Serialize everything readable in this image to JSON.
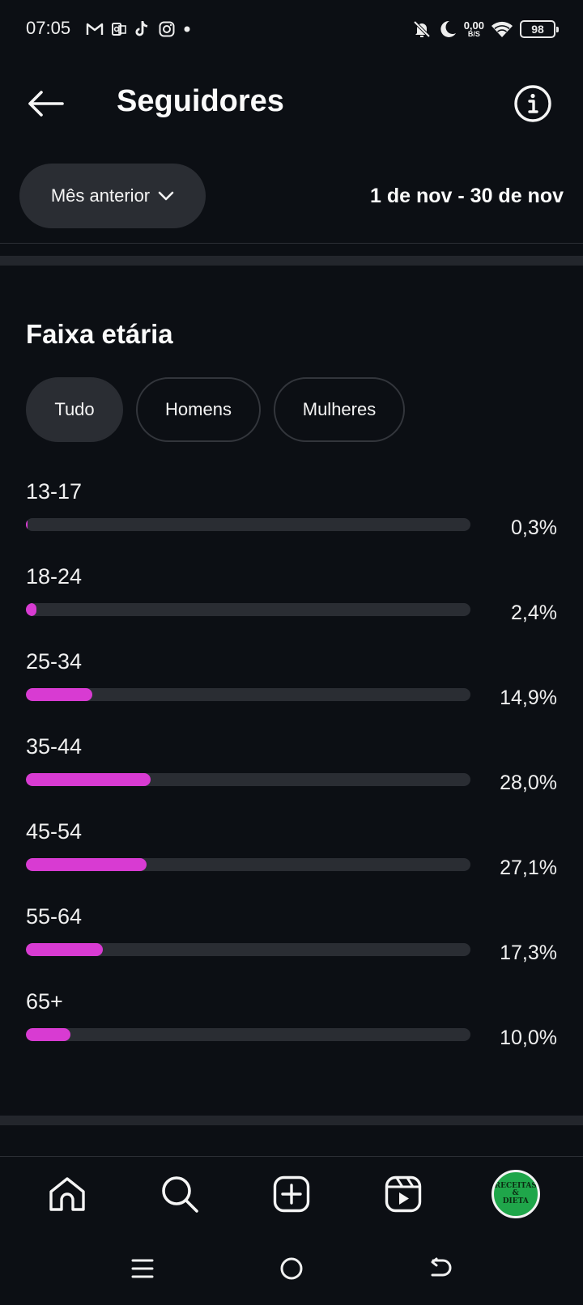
{
  "status_bar": {
    "time": "07:05",
    "left_icons": [
      "gmail-icon",
      "outlook-icon",
      "tiktok-icon",
      "instagram-icon",
      "dot-icon"
    ],
    "net_speed_value": "0,00",
    "net_speed_unit": "B/S",
    "battery_level": "98"
  },
  "header": {
    "title": "Seguidores",
    "back_icon": "arrow-left-icon",
    "info_icon": "info-icon"
  },
  "period": {
    "selector_label": "Mês anterior",
    "date_range": "1 de nov - 30 de nov"
  },
  "age_section": {
    "title": "Faixa etária",
    "filters": [
      "Tudo",
      "Homens",
      "Mulheres"
    ],
    "active_filter": "Tudo",
    "bar_color": "#d83bd2",
    "rows": [
      {
        "label": "13-17",
        "percent_text": "0,3%",
        "value": 0.3
      },
      {
        "label": "18-24",
        "percent_text": "2,4%",
        "value": 2.4
      },
      {
        "label": "25-34",
        "percent_text": "14,9%",
        "value": 14.9
      },
      {
        "label": "35-44",
        "percent_text": "28,0%",
        "value": 28.0
      },
      {
        "label": "45-54",
        "percent_text": "27,1%",
        "value": 27.1
      },
      {
        "label": "55-64",
        "percent_text": "17,3%",
        "value": 17.3
      },
      {
        "label": "65+",
        "percent_text": "10,0%",
        "value": 10.0
      }
    ]
  },
  "bottom_nav": {
    "items": [
      "home-icon",
      "search-icon",
      "create-icon",
      "reels-icon",
      "profile-avatar"
    ],
    "avatar_text_top": "RECEITAS",
    "avatar_text_mid": "&",
    "avatar_text_bottom": "DIETA"
  },
  "system_nav": [
    "menu-icon",
    "home-circle-icon",
    "back-gesture-icon"
  ]
}
